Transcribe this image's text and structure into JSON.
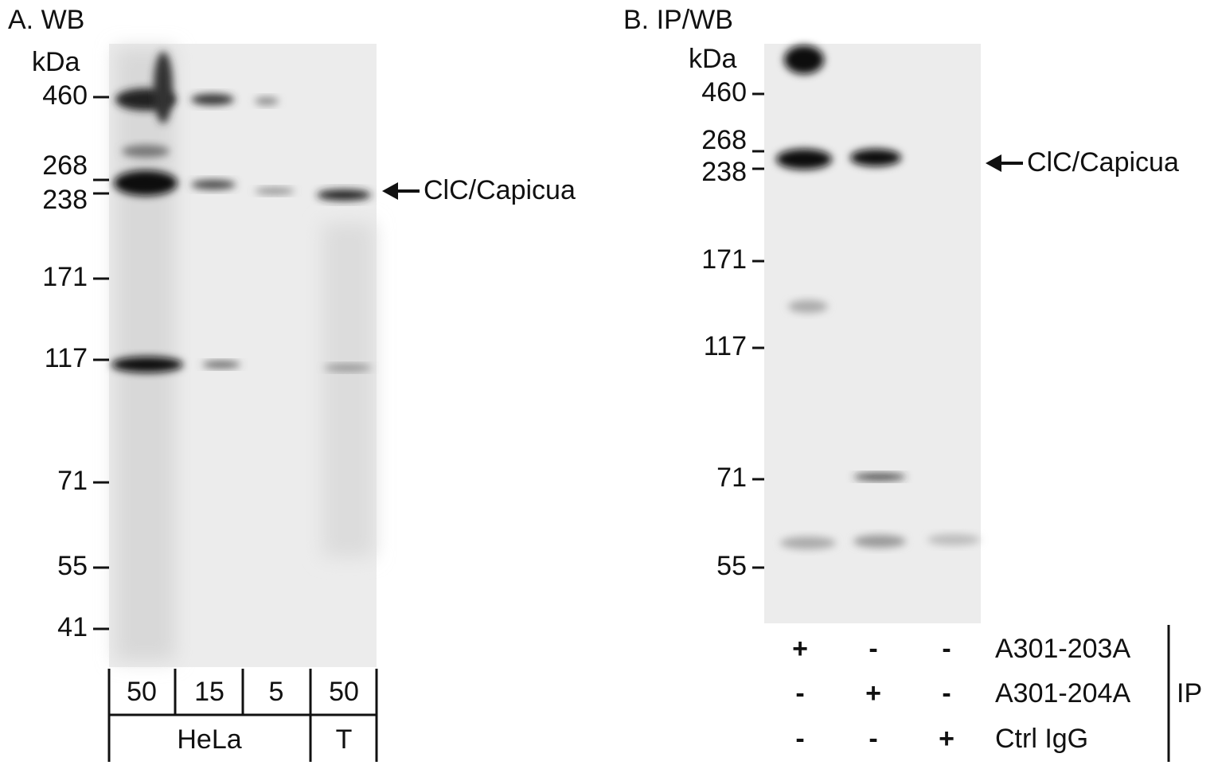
{
  "panels": [
    {
      "title": "A. WB",
      "unit": "kDa",
      "markers": [
        "460",
        "268",
        "238",
        "171",
        "117",
        "71",
        "55",
        "41"
      ],
      "annotation": "ClC/Capicua",
      "lanes": [
        "50",
        "15",
        "5",
        "50"
      ],
      "groups": [
        "HeLa",
        "T"
      ]
    },
    {
      "title": "B. IP/WB",
      "unit": "kDa",
      "markers": [
        "460",
        "268",
        "238",
        "171",
        "117",
        "71",
        "55"
      ],
      "annotation": "ClC/Capicua",
      "rows": [
        {
          "label": "A301-203A",
          "signs": [
            "+",
            "-",
            "-"
          ]
        },
        {
          "label": "A301-204A",
          "signs": [
            "-",
            "+",
            "-"
          ]
        },
        {
          "label": "Ctrl IgG",
          "signs": [
            "-",
            "-",
            "+"
          ]
        }
      ],
      "side_label": "IP"
    }
  ]
}
